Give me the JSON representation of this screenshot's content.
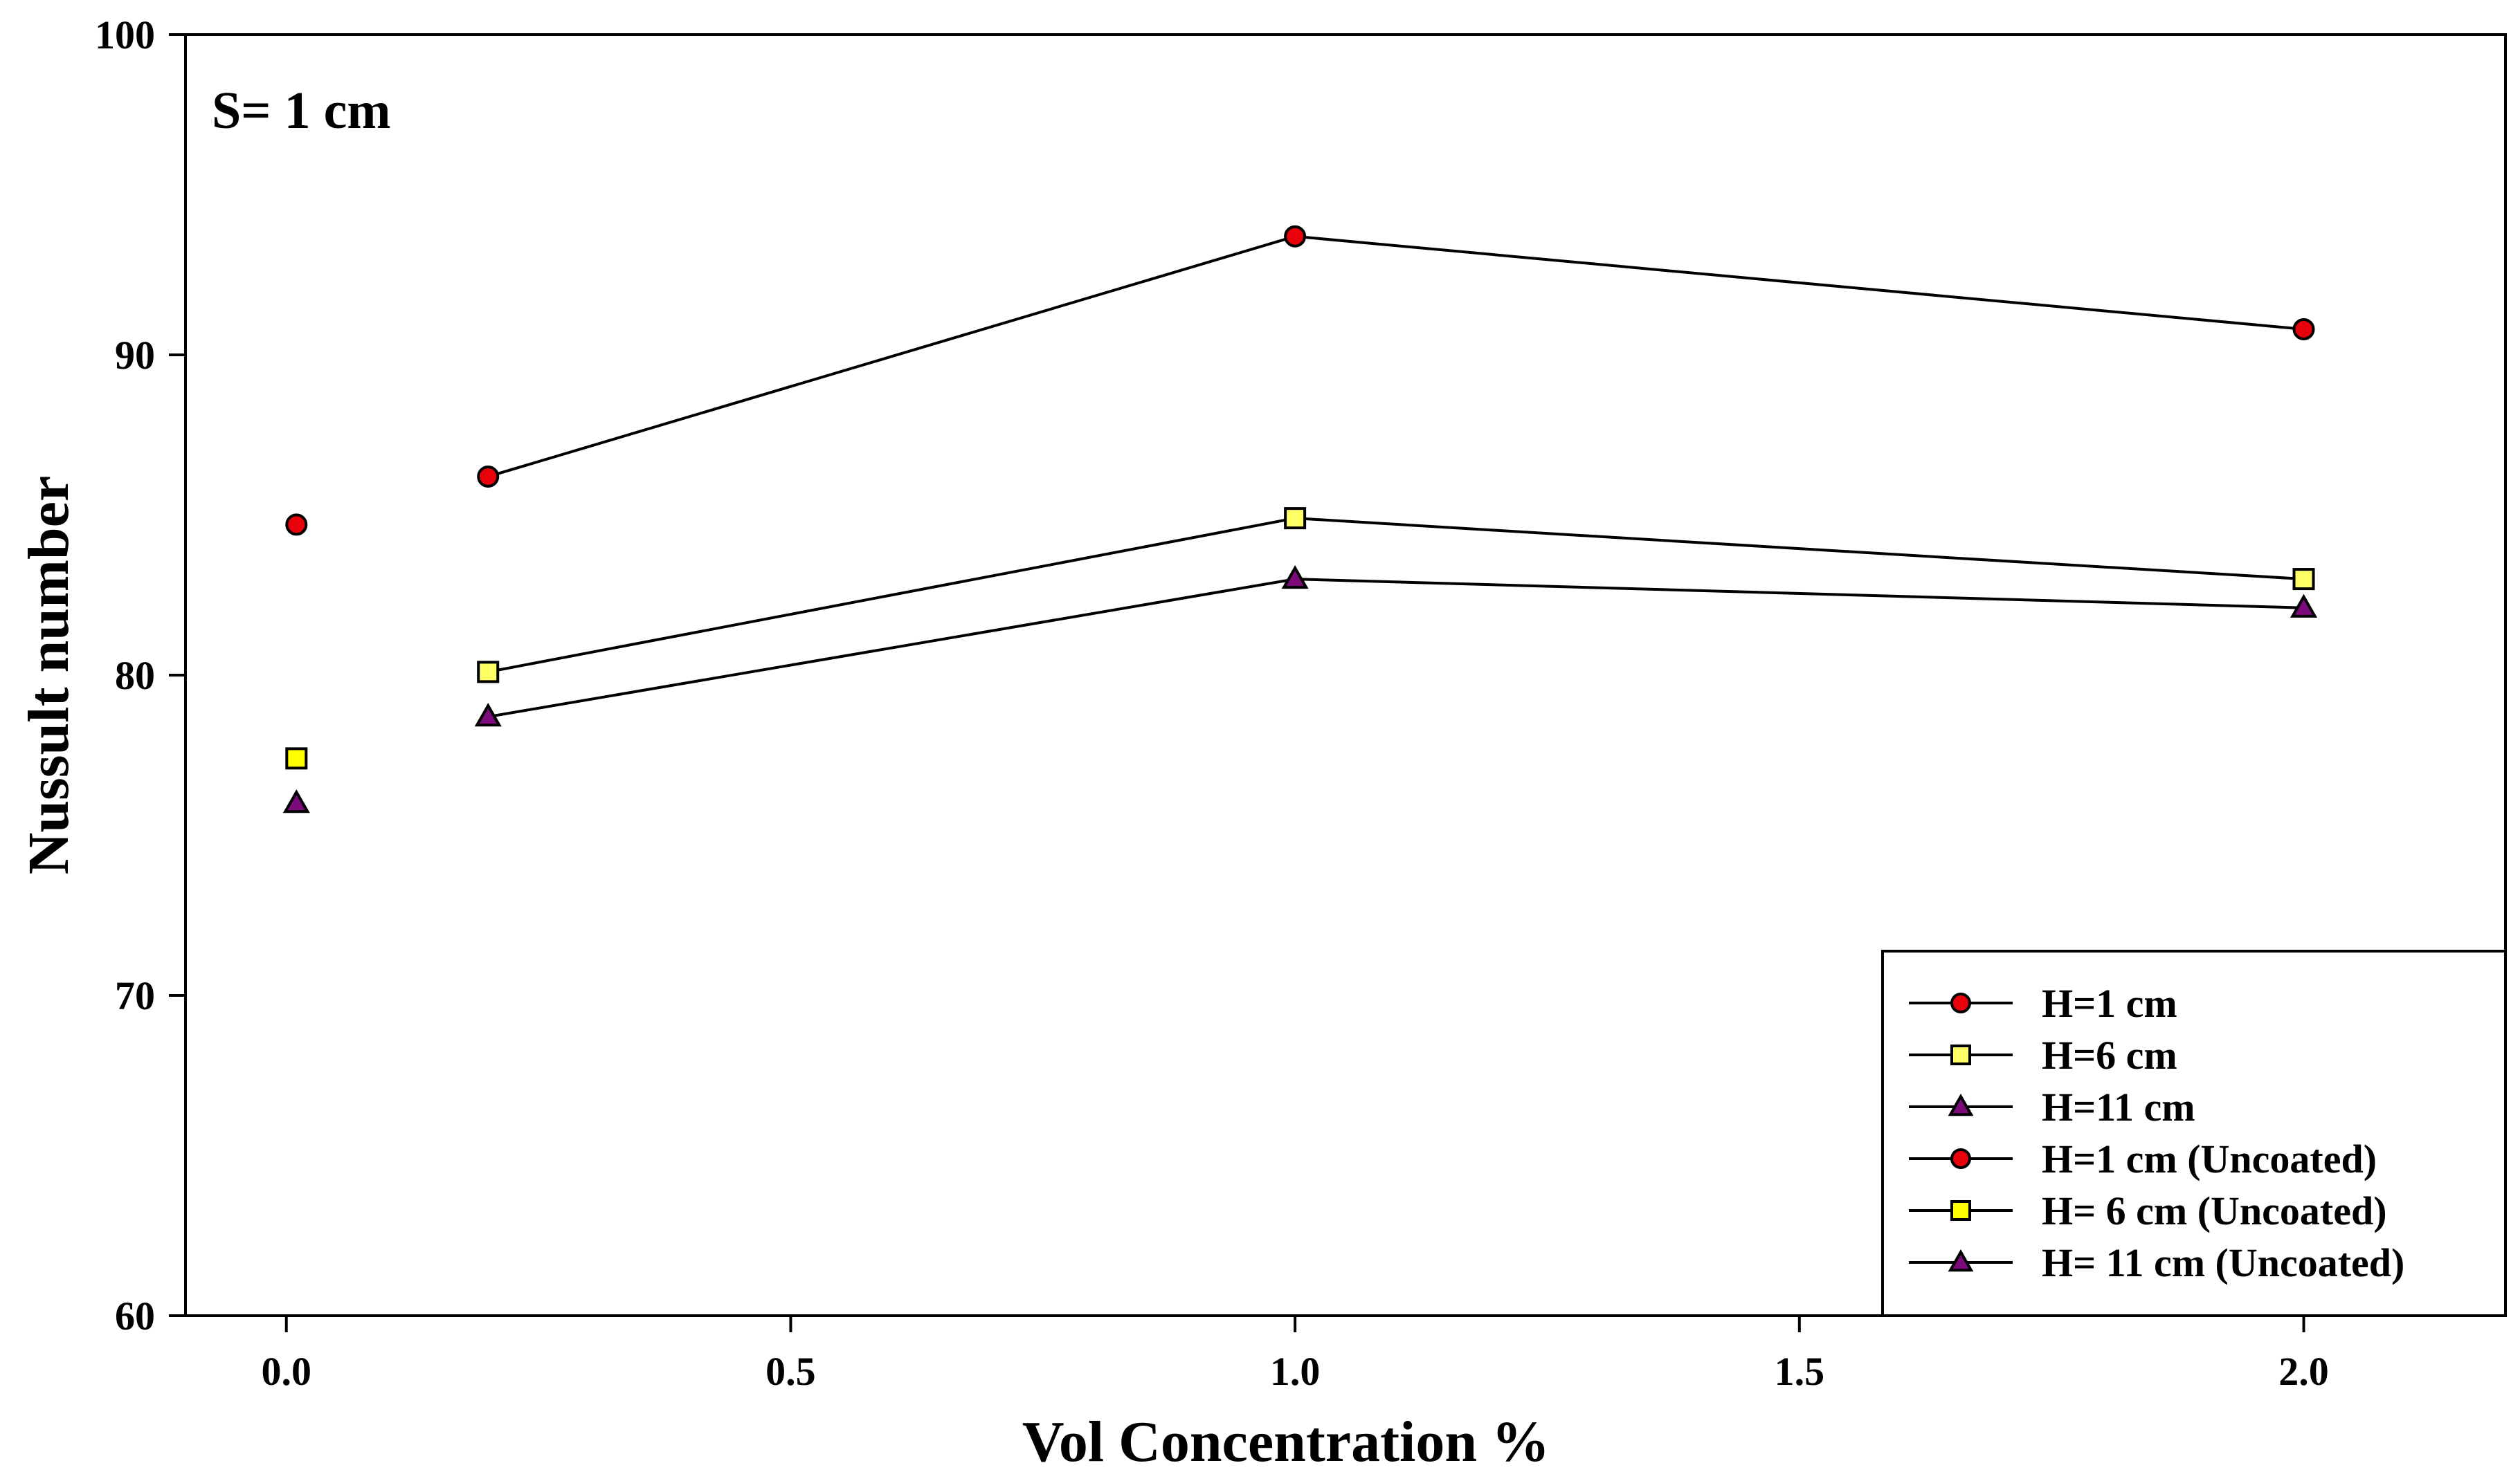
{
  "chart_data": {
    "type": "line",
    "annotation": "S= 1 cm",
    "xlabel": "Vol Concentration %",
    "ylabel": "Nussult number",
    "xlim": [
      -0.1,
      2.2
    ],
    "ylim": [
      60,
      100
    ],
    "x_ticks": [
      0.0,
      0.5,
      1.0,
      1.5,
      2.0
    ],
    "x_tick_labels": [
      "0.0",
      "0.5",
      "1.0",
      "1.5",
      "2.0"
    ],
    "y_ticks": [
      60,
      70,
      80,
      90,
      100
    ],
    "y_tick_labels": [
      "60",
      "70",
      "80",
      "90",
      "100"
    ],
    "legend_position": "bottom-right",
    "series": [
      {
        "name": "H=1 cm",
        "marker": "circle",
        "color": "#e8000b",
        "connected": true,
        "x": [
          0.2,
          1.0,
          2.0
        ],
        "values": [
          86.2,
          93.7,
          90.8
        ]
      },
      {
        "name": "H=6 cm",
        "marker": "square",
        "color": "#ffff66",
        "connected": true,
        "x": [
          0.2,
          1.0,
          2.0
        ],
        "values": [
          80.1,
          84.9,
          83.0
        ]
      },
      {
        "name": "H=11 cm",
        "marker": "triangle",
        "color": "#7b0a7b",
        "connected": true,
        "x": [
          0.2,
          1.0,
          2.0
        ],
        "values": [
          78.7,
          83.0,
          82.1
        ]
      },
      {
        "name": "H=1 cm (Uncoated)",
        "marker": "circle",
        "color": "#e8000b",
        "connected": false,
        "x": [
          0.01
        ],
        "values": [
          84.7
        ]
      },
      {
        "name": "H= 6 cm (Uncoated)",
        "marker": "square",
        "color": "#ffff00",
        "connected": false,
        "x": [
          0.01
        ],
        "values": [
          77.4
        ]
      },
      {
        "name": "H= 11 cm (Uncoated)",
        "marker": "triangle",
        "color": "#7b0a7b",
        "connected": false,
        "x": [
          0.01
        ],
        "values": [
          76.0
        ]
      }
    ]
  }
}
